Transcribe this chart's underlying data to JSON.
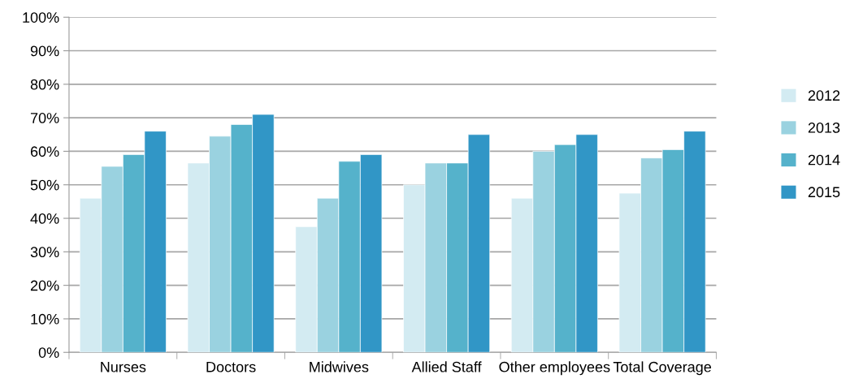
{
  "chart_data": {
    "type": "bar",
    "categories": [
      "Nurses",
      "Doctors",
      "Midwives",
      "Allied Staff",
      "Other employees",
      "Total Coverage"
    ],
    "series": [
      {
        "name": "2012",
        "color": "#d3ebf2",
        "values": [
          46,
          56.5,
          37.5,
          50,
          46,
          47.5
        ]
      },
      {
        "name": "2013",
        "color": "#9ad2e0",
        "values": [
          55.5,
          64.5,
          46,
          56.5,
          60,
          58
        ]
      },
      {
        "name": "2014",
        "color": "#55b2cb",
        "values": [
          59,
          68,
          57,
          56.5,
          62,
          60.5
        ]
      },
      {
        "name": "2015",
        "color": "#3196c6",
        "values": [
          66,
          71,
          59,
          65,
          65,
          66
        ]
      }
    ],
    "ylim": [
      0,
      100
    ],
    "yticks": [
      {
        "value": 0,
        "label": "0%"
      },
      {
        "value": 10,
        "label": "10%"
      },
      {
        "value": 20,
        "label": "20%"
      },
      {
        "value": 30,
        "label": "30%"
      },
      {
        "value": 40,
        "label": "40%"
      },
      {
        "value": 50,
        "label": "50%"
      },
      {
        "value": 60,
        "label": "60%"
      },
      {
        "value": 70,
        "label": "70%"
      },
      {
        "value": 80,
        "label": "80%"
      },
      {
        "value": 90,
        "label": "90%"
      },
      {
        "value": 100,
        "label": "100%"
      }
    ],
    "grid": "y",
    "legend": "right"
  }
}
